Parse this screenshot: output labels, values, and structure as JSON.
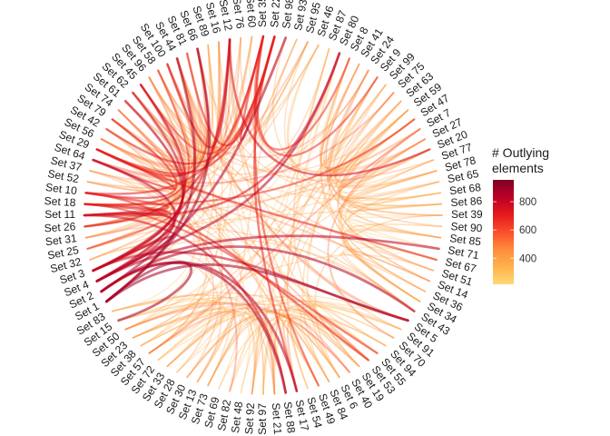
{
  "legend": {
    "title_line1": "# Outlying",
    "title_line2": "elements",
    "range": [
      215,
      955
    ],
    "ticks": [
      {
        "value": 400,
        "label": "400"
      },
      {
        "value": 600,
        "label": "600"
      },
      {
        "value": 800,
        "label": "800"
      }
    ],
    "colors": [
      "#FED976",
      "#FEB24C",
      "#FD8D3C",
      "#FC4E2A",
      "#E31A1C",
      "#BD0026",
      "#800026"
    ]
  },
  "sets": [
    {
      "name": "Set 35",
      "value": 650,
      "group": "L"
    },
    {
      "name": "Set 22",
      "value": 700,
      "group": "L"
    },
    {
      "name": "Set 98",
      "value": 350,
      "group": "L"
    },
    {
      "name": "Set 93",
      "value": 420,
      "group": "L"
    },
    {
      "name": "Set 95",
      "value": 370,
      "group": "L"
    },
    {
      "name": "Set 46",
      "value": 430,
      "group": "L"
    },
    {
      "name": "Set 87",
      "value": 300,
      "group": "B"
    },
    {
      "name": "Set 80",
      "value": 300,
      "group": "B"
    },
    {
      "name": "Set 8",
      "value": 320,
      "group": "R"
    },
    {
      "name": "Set 41",
      "value": 470,
      "group": "R"
    },
    {
      "name": "Set 24",
      "value": 500,
      "group": "R"
    },
    {
      "name": "Set 9",
      "value": 380,
      "group": "R"
    },
    {
      "name": "Set 99",
      "value": 380,
      "group": "R"
    },
    {
      "name": "Set 75",
      "value": 380,
      "group": "R"
    },
    {
      "name": "Set 63",
      "value": 400,
      "group": "R"
    },
    {
      "name": "Set 59",
      "value": 380,
      "group": "R"
    },
    {
      "name": "Set 47",
      "value": 420,
      "group": "R"
    },
    {
      "name": "Set 7",
      "value": 550,
      "group": "R"
    },
    {
      "name": "Set 27",
      "value": 400,
      "group": "R"
    },
    {
      "name": "Set 20",
      "value": 420,
      "group": "R"
    },
    {
      "name": "Set 77",
      "value": 380,
      "group": "R"
    },
    {
      "name": "Set 78",
      "value": 350,
      "group": "R"
    },
    {
      "name": "Set 65",
      "value": 430,
      "group": "R"
    },
    {
      "name": "Set 68",
      "value": 320,
      "group": "R"
    },
    {
      "name": "Set 86",
      "value": 320,
      "group": "R"
    },
    {
      "name": "Set 39",
      "value": 330,
      "group": "R"
    },
    {
      "name": "Set 90",
      "value": 310,
      "group": "R"
    },
    {
      "name": "Set 85",
      "value": 330,
      "group": "R"
    },
    {
      "name": "Set 71",
      "value": 310,
      "group": "R"
    },
    {
      "name": "Set 67",
      "value": 320,
      "group": "R"
    },
    {
      "name": "Set 51",
      "value": 380,
      "group": "R"
    },
    {
      "name": "Set 14",
      "value": 420,
      "group": "R"
    },
    {
      "name": "Set 36",
      "value": 380,
      "group": "R"
    },
    {
      "name": "Set 34",
      "value": 400,
      "group": "R"
    },
    {
      "name": "Set 43",
      "value": 430,
      "group": "R"
    },
    {
      "name": "Set 5",
      "value": 350,
      "group": "B"
    },
    {
      "name": "Set 91",
      "value": 330,
      "group": "B"
    },
    {
      "name": "Set 70",
      "value": 340,
      "group": "B"
    },
    {
      "name": "Set 94",
      "value": 350,
      "group": "B"
    },
    {
      "name": "Set 55",
      "value": 340,
      "group": "B"
    },
    {
      "name": "Set 53",
      "value": 420,
      "group": "B"
    },
    {
      "name": "Set 19",
      "value": 430,
      "group": "B"
    },
    {
      "name": "Set 40",
      "value": 550,
      "group": "B"
    },
    {
      "name": "Set 6",
      "value": 430,
      "group": "B"
    },
    {
      "name": "Set 84",
      "value": 370,
      "group": "B"
    },
    {
      "name": "Set 49",
      "value": 360,
      "group": "B"
    },
    {
      "name": "Set 54",
      "value": 380,
      "group": "B"
    },
    {
      "name": "Set 17",
      "value": 420,
      "group": "B"
    },
    {
      "name": "Set 88",
      "value": 360,
      "group": "B"
    },
    {
      "name": "Set 21",
      "value": 480,
      "group": "B"
    },
    {
      "name": "Set 97",
      "value": 330,
      "group": "B"
    },
    {
      "name": "Set 92",
      "value": 330,
      "group": "B"
    },
    {
      "name": "Set 48",
      "value": 340,
      "group": "B"
    },
    {
      "name": "Set 82",
      "value": 330,
      "group": "B"
    },
    {
      "name": "Set 69",
      "value": 360,
      "group": "B"
    },
    {
      "name": "Set 73",
      "value": 430,
      "group": "B"
    },
    {
      "name": "Set 13",
      "value": 450,
      "group": "B"
    },
    {
      "name": "Set 30",
      "value": 450,
      "group": "B"
    },
    {
      "name": "Set 28",
      "value": 340,
      "group": "B"
    },
    {
      "name": "Set 33",
      "value": 360,
      "group": "B"
    },
    {
      "name": "Set 72",
      "value": 360,
      "group": "B"
    },
    {
      "name": "Set 57",
      "value": 370,
      "group": "B"
    },
    {
      "name": "Set 38",
      "value": 380,
      "group": "B"
    },
    {
      "name": "Set 23",
      "value": 450,
      "group": "B"
    },
    {
      "name": "Set 50",
      "value": 380,
      "group": "B"
    },
    {
      "name": "Set 15",
      "value": 340,
      "group": "B"
    },
    {
      "name": "Set 83",
      "value": 320,
      "group": "B"
    },
    {
      "name": "Set 1",
      "value": 880,
      "group": "L"
    },
    {
      "name": "Set 2",
      "value": 850,
      "group": "L"
    },
    {
      "name": "Set 4",
      "value": 830,
      "group": "L"
    },
    {
      "name": "Set 3",
      "value": 800,
      "group": "L"
    },
    {
      "name": "Set 32",
      "value": 450,
      "group": "L"
    },
    {
      "name": "Set 25",
      "value": 420,
      "group": "L"
    },
    {
      "name": "Set 31",
      "value": 420,
      "group": "L"
    },
    {
      "name": "Set 26",
      "value": 450,
      "group": "L"
    },
    {
      "name": "Set 11",
      "value": 750,
      "group": "L"
    },
    {
      "name": "Set 18",
      "value": 650,
      "group": "L"
    },
    {
      "name": "Set 10",
      "value": 700,
      "group": "L"
    },
    {
      "name": "Set 52",
      "value": 430,
      "group": "L"
    },
    {
      "name": "Set 37",
      "value": 450,
      "group": "L"
    },
    {
      "name": "Set 64",
      "value": 600,
      "group": "L"
    },
    {
      "name": "Set 29",
      "value": 700,
      "group": "L"
    },
    {
      "name": "Set 56",
      "value": 520,
      "group": "L"
    },
    {
      "name": "Set 42",
      "value": 430,
      "group": "L"
    },
    {
      "name": "Set 79",
      "value": 450,
      "group": "L"
    },
    {
      "name": "Set 74",
      "value": 550,
      "group": "L"
    },
    {
      "name": "Set 61",
      "value": 450,
      "group": "L"
    },
    {
      "name": "Set 62",
      "value": 430,
      "group": "L"
    },
    {
      "name": "Set 45",
      "value": 600,
      "group": "L"
    },
    {
      "name": "Set 96",
      "value": 500,
      "group": "L"
    },
    {
      "name": "Set 58",
      "value": 470,
      "group": "L"
    },
    {
      "name": "Set 100",
      "value": 550,
      "group": "L"
    },
    {
      "name": "Set 44",
      "value": 520,
      "group": "L"
    },
    {
      "name": "Set 81",
      "value": 420,
      "group": "L"
    },
    {
      "name": "Set 66",
      "value": 400,
      "group": "L"
    },
    {
      "name": "Set 89",
      "value": 380,
      "group": "L"
    },
    {
      "name": "Set 16",
      "value": 400,
      "group": "L"
    },
    {
      "name": "Set 12",
      "value": 750,
      "group": "L"
    },
    {
      "name": "Set 76",
      "value": 450,
      "group": "L"
    },
    {
      "name": "Set 60",
      "value": 450,
      "group": "L"
    }
  ]
}
